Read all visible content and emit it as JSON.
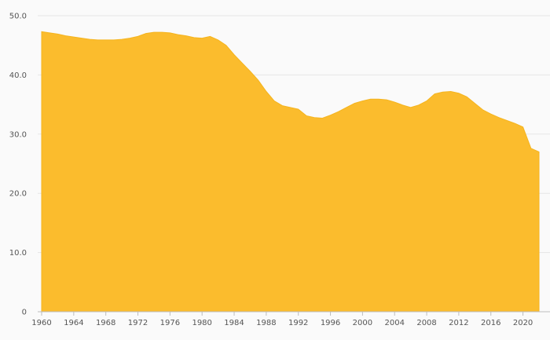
{
  "chart_data": {
    "type": "area",
    "title": "",
    "xlabel": "",
    "ylabel": "",
    "xlim": [
      1960,
      2022
    ],
    "ylim": [
      0,
      50
    ],
    "grid": true,
    "legend": "none",
    "color": "#fbbc2d",
    "y_ticks": [
      0,
      10,
      20,
      30,
      40,
      50
    ],
    "y_tick_labels": [
      "0",
      "10.0",
      "20.0",
      "30.0",
      "40.0",
      "50.0"
    ],
    "x_ticks": [
      1960,
      1964,
      1968,
      1972,
      1976,
      1980,
      1984,
      1988,
      1992,
      1996,
      2000,
      2004,
      2008,
      2012,
      2016,
      2020
    ],
    "x_tick_labels": [
      "1960",
      "1964",
      "1968",
      "1972",
      "1976",
      "1980",
      "1984",
      "1988",
      "1992",
      "1996",
      "2000",
      "2004",
      "2008",
      "2012",
      "2016",
      "2020"
    ],
    "x": [
      1960,
      1961,
      1962,
      1963,
      1964,
      1965,
      1966,
      1967,
      1968,
      1969,
      1970,
      1971,
      1972,
      1973,
      1974,
      1975,
      1976,
      1977,
      1978,
      1979,
      1980,
      1981,
      1982,
      1983,
      1984,
      1985,
      1986,
      1987,
      1988,
      1989,
      1990,
      1991,
      1992,
      1993,
      1994,
      1995,
      1996,
      1997,
      1998,
      1999,
      2000,
      2001,
      2002,
      2003,
      2004,
      2005,
      2006,
      2007,
      2008,
      2009,
      2010,
      2011,
      2012,
      2013,
      2014,
      2015,
      2016,
      2017,
      2018,
      2019,
      2020,
      2021,
      2022
    ],
    "values": [
      47.3,
      47.1,
      46.9,
      46.6,
      46.4,
      46.2,
      46.0,
      45.9,
      45.9,
      45.9,
      46.0,
      46.2,
      46.5,
      47.0,
      47.2,
      47.2,
      47.1,
      46.8,
      46.6,
      46.3,
      46.2,
      46.5,
      45.9,
      45.0,
      43.4,
      42.0,
      40.6,
      39.1,
      37.2,
      35.6,
      34.8,
      34.5,
      34.2,
      33.1,
      32.8,
      32.7,
      33.2,
      33.8,
      34.5,
      35.2,
      35.6,
      35.9,
      35.9,
      35.8,
      35.4,
      34.9,
      34.5,
      34.9,
      35.6,
      36.8,
      37.1,
      37.2,
      36.9,
      36.3,
      35.2,
      34.1,
      33.4,
      32.8,
      32.3,
      31.8,
      31.2,
      27.6,
      27.0
    ]
  }
}
